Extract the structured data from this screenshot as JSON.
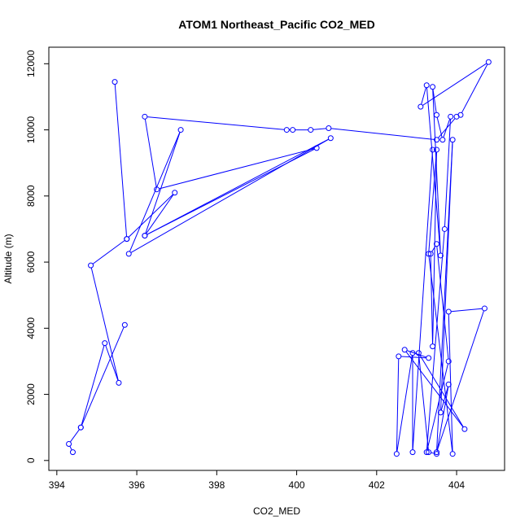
{
  "chart_data": {
    "type": "line",
    "title": "ATOM1 Northeast_Pacific CO2_MED",
    "xlabel": "CO2_MED",
    "ylabel": "Altitude (m)",
    "xlim": [
      393.8,
      405.2
    ],
    "ylim": [
      -300,
      12500
    ],
    "xticks": [
      "394",
      "396",
      "398",
      "400",
      "402",
      "404"
    ],
    "yticks": [
      "0",
      "2000",
      "4000",
      "6000",
      "8000",
      "10000",
      "12000"
    ],
    "grid": false,
    "legend": "none",
    "series": [
      {
        "color": "#0000ff",
        "marker": "open-circle",
        "points": [
          [
            394.4,
            250
          ],
          [
            394.3,
            500
          ],
          [
            394.6,
            1000
          ],
          [
            395.2,
            3550
          ],
          [
            395.55,
            2350
          ],
          [
            394.85,
            5900
          ],
          [
            395.75,
            6700
          ],
          [
            396.95,
            8100
          ],
          [
            396.2,
            6800
          ],
          [
            400.85,
            9750
          ],
          [
            395.8,
            6250
          ],
          [
            397.1,
            10000
          ],
          [
            396.2,
            6800
          ],
          [
            400.5,
            9450
          ],
          [
            396.5,
            8200
          ],
          [
            396.2,
            10400
          ],
          [
            399.75,
            10000
          ],
          [
            399.9,
            10000
          ],
          [
            400.35,
            10000
          ],
          [
            400.8,
            10050
          ],
          [
            403.5,
            9700
          ],
          [
            404.0,
            10400
          ],
          [
            404.1,
            10450
          ],
          [
            404.8,
            12050
          ],
          [
            403.1,
            10700
          ],
          [
            403.25,
            11350
          ],
          [
            403.6,
            6200
          ],
          [
            403.4,
            11300
          ],
          [
            403.5,
            10450
          ],
          [
            403.65,
            9700
          ],
          [
            403.85,
            10400
          ],
          [
            403.7,
            7000
          ],
          [
            403.25,
            250
          ],
          [
            403.8,
            3000
          ],
          [
            403.5,
            6550
          ],
          [
            403.35,
            6250
          ],
          [
            403.4,
            3450
          ],
          [
            403.5,
            9400
          ],
          [
            403.3,
            6250
          ],
          [
            403.9,
            200
          ],
          [
            403.8,
            4500
          ],
          [
            404.7,
            4600
          ],
          [
            403.5,
            250
          ],
          [
            403.9,
            9700
          ],
          [
            403.6,
            1450
          ],
          [
            403.8,
            2300
          ],
          [
            403.5,
            200
          ],
          [
            403.3,
            250
          ],
          [
            403.05,
            3250
          ],
          [
            404.2,
            950
          ],
          [
            402.7,
            3350
          ],
          [
            403.3,
            3100
          ],
          [
            402.55,
            3150
          ],
          [
            402.5,
            200
          ],
          [
            402.9,
            3250
          ],
          [
            402.9,
            250
          ],
          [
            403.4,
            9400
          ]
        ]
      },
      {
        "color": "#0000ff",
        "marker": "open-circle",
        "points": [
          [
            394.6,
            1000
          ],
          [
            395.7,
            4100
          ]
        ]
      },
      {
        "color": "#0000ff",
        "marker": "open-circle",
        "points": [
          [
            395.45,
            11450
          ],
          [
            395.75,
            6700
          ]
        ]
      }
    ]
  }
}
